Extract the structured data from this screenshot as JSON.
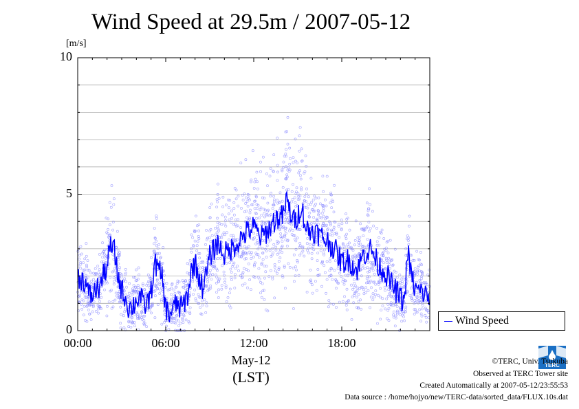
{
  "chart_data": {
    "type": "scatter",
    "title": "Wind Speed at 29.5m / 2007-05-12",
    "y_unit": "[m/s]",
    "ylim": [
      0,
      10
    ],
    "y_ticks": [
      "0",
      "5",
      "10"
    ],
    "x_domain_hours": [
      0,
      24
    ],
    "x_tick_labels": [
      "00:00",
      "06:00",
      "12:00",
      "18:00"
    ],
    "x_date_label": "May-12",
    "x_axis_label": "(LST)",
    "grid": true,
    "legend_position": "bottom-right outside plot",
    "series": [
      {
        "name": "Wind Speed",
        "color": "#0000ff",
        "style": "line with faint scatter of raw 10 s samples",
        "x": [
          0.0,
          0.5,
          0.75,
          1.0,
          1.25,
          1.5,
          1.75,
          2.0,
          2.25,
          2.5,
          2.75,
          3.0,
          3.25,
          3.5,
          3.75,
          4.0,
          4.25,
          4.5,
          4.75,
          5.0,
          5.25,
          5.5,
          5.75,
          6.0,
          6.25,
          6.5,
          6.75,
          7.0,
          7.25,
          7.5,
          7.75,
          8.0,
          8.25,
          8.5,
          8.75,
          9.0,
          9.5,
          10.0,
          10.5,
          11.0,
          11.5,
          12.0,
          12.5,
          13.0,
          13.5,
          14.0,
          14.25,
          14.5,
          14.75,
          15.0,
          15.25,
          15.5,
          15.75,
          16.0,
          16.5,
          17.0,
          17.5,
          18.0,
          18.5,
          19.0,
          19.5,
          20.0,
          20.5,
          21.0,
          21.5,
          22.0,
          22.25,
          22.5,
          22.75,
          23.0,
          23.5,
          24.0
        ],
        "y": [
          2.0,
          1.8,
          1.3,
          1.3,
          1.5,
          1.6,
          2.0,
          2.4,
          3.1,
          2.9,
          2.0,
          1.5,
          1.2,
          0.8,
          0.9,
          1.1,
          1.3,
          0.9,
          1.0,
          1.4,
          2.5,
          2.2,
          2.0,
          0.8,
          0.6,
          0.8,
          1.0,
          0.8,
          1.0,
          1.3,
          2.2,
          2.5,
          2.0,
          1.6,
          2.0,
          2.7,
          3.2,
          2.8,
          3.0,
          3.3,
          3.6,
          3.8,
          3.4,
          3.7,
          4.1,
          4.2,
          4.8,
          4.3,
          4.0,
          4.2,
          4.6,
          3.9,
          3.6,
          3.7,
          3.5,
          3.3,
          3.0,
          2.5,
          2.6,
          2.2,
          2.8,
          3.0,
          2.4,
          2.1,
          1.6,
          1.2,
          1.0,
          2.9,
          2.0,
          1.5,
          1.4,
          1.2
        ]
      }
    ]
  },
  "footer": {
    "copyright": "©TERC, Univ. Tsukuba",
    "observed": "Observed at TERC Tower site",
    "created": "Created Automatically at 2007-05-12/23:55:53",
    "source": "Data source : /home/hojyo/new/TERC-data/sorted_data/FLUX.10s.dat"
  },
  "logo": {
    "text": "TERC",
    "color": "#1a6fc4"
  }
}
